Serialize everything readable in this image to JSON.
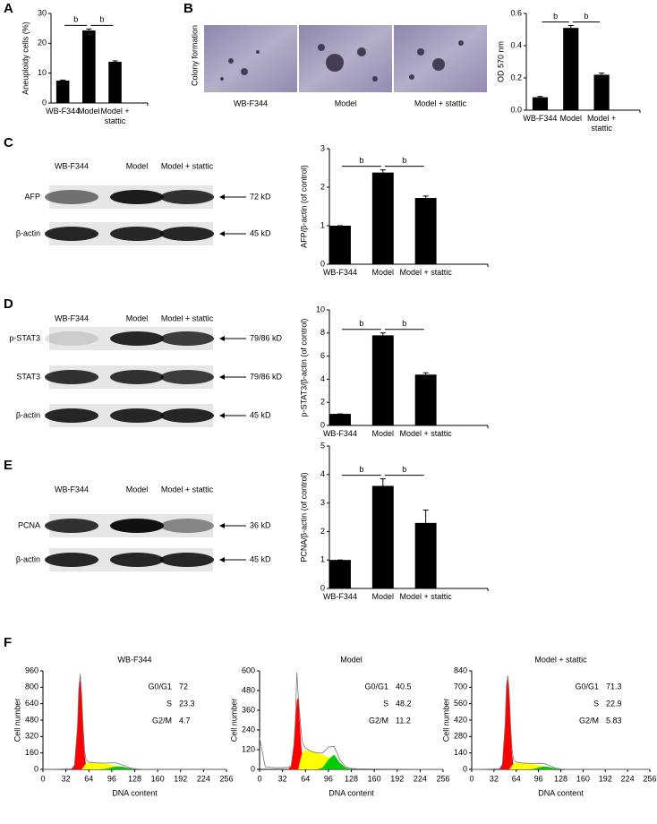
{
  "panel_labels": [
    "A",
    "B",
    "C",
    "D",
    "E",
    "F"
  ],
  "colony": {
    "ylabel": "Colony formation",
    "labels": [
      "WB-F344",
      "Model",
      "Model + stattic"
    ]
  },
  "blots": [
    {
      "lanes": [
        "WB-F344",
        "Model",
        "Model + stattic"
      ],
      "rows": [
        {
          "name": "AFP",
          "size": "72 kD"
        },
        {
          "name": "β-actin",
          "size": "45 kD"
        }
      ]
    },
    {
      "lanes": [
        "WB-F344",
        "Model",
        "Model + stattic"
      ],
      "rows": [
        {
          "name": "p-STAT3",
          "size": "79/86 kD"
        },
        {
          "name": "STAT3",
          "size": "79/86 kD"
        },
        {
          "name": "β-actin",
          "size": "45 kD"
        }
      ]
    },
    {
      "lanes": [
        "WB-F344",
        "Model",
        "Model + stattic"
      ],
      "rows": [
        {
          "name": "PCNA",
          "size": "36 kD"
        },
        {
          "name": "β-actin",
          "size": "45 kD"
        }
      ]
    }
  ],
  "chart_data": [
    {
      "type": "bar",
      "ylabel": "Aneuploidy cells (%)",
      "categories": [
        "WB-F344",
        "Model",
        "Model + stattic"
      ],
      "values": [
        7.5,
        24.3,
        13.8
      ],
      "errors": [
        0.2,
        0.5,
        0.3
      ],
      "color": "#000000",
      "ylim": [
        0,
        30
      ],
      "yticks": [
        0,
        10,
        20,
        30
      ],
      "significance_labels": [
        "b",
        "b"
      ]
    },
    {
      "type": "bar",
      "ylabel": "OD 570 nm",
      "categories": [
        "WB-F344",
        "Model",
        "Model + stattic"
      ],
      "values": [
        0.08,
        0.51,
        0.22
      ],
      "errors": [
        0.005,
        0.015,
        0.01
      ],
      "color": "#000000",
      "ylim": [
        0,
        0.6
      ],
      "yticks": [
        {
          "value": 0,
          "label": "0.0"
        },
        0.2,
        0.4,
        0.6
      ],
      "significance_labels": [
        "b",
        "b"
      ]
    },
    {
      "type": "bar",
      "ylabel": "AFP/β-actin (of control)",
      "categories": [
        "WB-F344",
        "Model",
        "Model + stattic"
      ],
      "values": [
        1,
        2.38,
        1.72
      ],
      "errors": [
        0,
        0.07,
        0.05
      ],
      "color": "#000000",
      "ylim": [
        0,
        3
      ],
      "yticks": [
        0,
        1,
        2,
        3
      ],
      "significance_labels": [
        "b",
        "b"
      ]
    },
    {
      "type": "bar",
      "ylabel": "p-STAT3/β-actin (of control)",
      "categories": [
        "WB-F344",
        "Model",
        "Model + stattic"
      ],
      "values": [
        1,
        7.8,
        4.4
      ],
      "errors": [
        0,
        0.2,
        0.15
      ],
      "color": "#000000",
      "ylim": [
        0,
        10
      ],
      "yticks": [
        0,
        2,
        4,
        6,
        8,
        10
      ],
      "significance_labels": [
        "b",
        "b"
      ]
    },
    {
      "type": "bar",
      "ylabel": "PCNA/β-actin (of control)",
      "categories": [
        "WB-F344",
        "Model",
        "Model + stattic"
      ],
      "values": [
        1,
        3.6,
        2.3
      ],
      "errors": [
        0,
        0.25,
        0.45
      ],
      "color": "#000000",
      "ylim": [
        0,
        5
      ],
      "yticks": [
        0,
        1,
        2,
        3,
        4,
        5
      ],
      "significance_labels": [
        "b",
        "b"
      ]
    },
    {
      "type": "area",
      "title": "WB-F344",
      "xlabel": "DNA content",
      "ylabel": "Cell number",
      "x": [
        0,
        8,
        24,
        40,
        44,
        48,
        50,
        52,
        54,
        56,
        58,
        60,
        64,
        72,
        80,
        88,
        96,
        104,
        112,
        120,
        128,
        136,
        160,
        256
      ],
      "series": [
        {
          "color": "#ff0000",
          "fill": true,
          "values": [
            0,
            0,
            0,
            3,
            40,
            400,
            780,
            900,
            720,
            400,
            150,
            40,
            5,
            0,
            0,
            0,
            0,
            0,
            0,
            0,
            0,
            0,
            0,
            0
          ]
        },
        {
          "color": "#ffff00",
          "fill": true,
          "values": [
            0,
            0,
            0,
            0,
            0,
            0,
            0,
            0,
            0,
            20,
            40,
            55,
            65,
            65,
            60,
            55,
            45,
            30,
            15,
            5,
            0,
            0,
            0,
            0
          ]
        },
        {
          "color": "#00cc00",
          "fill": true,
          "values": [
            0,
            0,
            0,
            0,
            0,
            0,
            0,
            0,
            0,
            0,
            0,
            0,
            0,
            0,
            0,
            5,
            20,
            30,
            25,
            12,
            3,
            0,
            0,
            0
          ]
        },
        {
          "color": "#777777",
          "fill": false,
          "values": [
            0,
            0,
            2,
            5,
            42,
            405,
            785,
            930,
            725,
            420,
            190,
            95,
            70,
            65,
            62,
            60,
            65,
            60,
            40,
            17,
            5,
            2,
            0,
            0
          ]
        }
      ],
      "xlim": [
        0,
        256
      ],
      "xticks": [
        0,
        32,
        64,
        96,
        128,
        160,
        192,
        224,
        256
      ],
      "ylim": [
        0,
        960
      ],
      "yticks": [
        0,
        160,
        320,
        480,
        640,
        800,
        960
      ],
      "stats": [
        {
          "label": "G0/G1",
          "value": 72
        },
        {
          "label": "S",
          "value": 23.3
        },
        {
          "label": "G2/M",
          "value": 4.7
        }
      ]
    },
    {
      "type": "area",
      "title": "Model",
      "xlabel": "DNA content",
      "ylabel": "Cell number",
      "x": [
        0,
        8,
        24,
        40,
        44,
        48,
        50,
        52,
        54,
        56,
        58,
        60,
        64,
        72,
        80,
        88,
        96,
        104,
        112,
        120,
        128,
        136,
        160,
        256
      ],
      "series": [
        {
          "color": "#ff0000",
          "fill": true,
          "values": [
            0,
            0,
            0,
            2,
            20,
            150,
            300,
            420,
            440,
            300,
            150,
            60,
            10,
            0,
            0,
            0,
            0,
            0,
            0,
            0,
            0,
            0,
            0,
            0
          ]
        },
        {
          "color": "#ffff00",
          "fill": true,
          "values": [
            0,
            0,
            0,
            0,
            0,
            0,
            0,
            0,
            0,
            40,
            80,
            100,
            120,
            110,
            100,
            90,
            75,
            50,
            20,
            5,
            0,
            0,
            0,
            0
          ]
        },
        {
          "color": "#00cc00",
          "fill": true,
          "values": [
            0,
            0,
            0,
            0,
            0,
            0,
            0,
            0,
            0,
            0,
            0,
            0,
            0,
            0,
            0,
            10,
            60,
            90,
            40,
            10,
            2,
            0,
            0,
            0
          ]
        },
        {
          "color": "#777777",
          "fill": false,
          "values": [
            190,
            15,
            10,
            12,
            22,
            155,
            310,
            590,
            445,
            340,
            230,
            160,
            130,
            110,
            100,
            100,
            135,
            140,
            60,
            15,
            5,
            3,
            2,
            0
          ]
        }
      ],
      "xlim": [
        0,
        256
      ],
      "xticks": [
        0,
        32,
        64,
        96,
        128,
        160,
        192,
        224,
        256
      ],
      "ylim": [
        0,
        600
      ],
      "yticks": [
        0,
        120,
        240,
        360,
        480,
        600
      ],
      "stats": [
        {
          "label": "G0/G1",
          "value": 40.5
        },
        {
          "label": "S",
          "value": 48.2
        },
        {
          "label": "G2/M",
          "value": 11.2
        }
      ]
    },
    {
      "type": "area",
      "title": "Model + stattic",
      "xlabel": "DNA content",
      "ylabel": "Cell number",
      "x": [
        0,
        8,
        24,
        40,
        44,
        48,
        50,
        52,
        54,
        56,
        58,
        60,
        64,
        72,
        80,
        88,
        96,
        104,
        112,
        120,
        128,
        136,
        160,
        256
      ],
      "series": [
        {
          "color": "#ff0000",
          "fill": true,
          "values": [
            0,
            0,
            0,
            3,
            40,
            380,
            720,
            780,
            640,
            350,
            130,
            35,
            5,
            0,
            0,
            0,
            0,
            0,
            0,
            0,
            0,
            0,
            0,
            0
          ]
        },
        {
          "color": "#ffff00",
          "fill": true,
          "values": [
            0,
            0,
            0,
            0,
            0,
            0,
            0,
            0,
            0,
            15,
            35,
            45,
            55,
            55,
            50,
            45,
            35,
            25,
            12,
            4,
            0,
            0,
            0,
            0
          ]
        },
        {
          "color": "#00cc00",
          "fill": true,
          "values": [
            0,
            0,
            0,
            0,
            0,
            0,
            0,
            0,
            0,
            0,
            0,
            0,
            0,
            0,
            0,
            3,
            15,
            25,
            20,
            8,
            2,
            0,
            0,
            0
          ]
        },
        {
          "color": "#777777",
          "fill": false,
          "values": [
            0,
            0,
            2,
            5,
            42,
            385,
            725,
            800,
            645,
            370,
            170,
            85,
            62,
            55,
            52,
            50,
            52,
            50,
            32,
            12,
            3,
            1,
            0,
            0
          ]
        }
      ],
      "xlim": [
        0,
        256
      ],
      "xticks": [
        0,
        32,
        64,
        96,
        128,
        160,
        192,
        224,
        256
      ],
      "ylim": [
        0,
        840
      ],
      "yticks": [
        0,
        140,
        280,
        420,
        560,
        700,
        840
      ],
      "stats": [
        {
          "label": "G0/G1",
          "value": 71.3
        },
        {
          "label": "S",
          "value": 22.9
        },
        {
          "label": "G2/M",
          "value": 5.83
        }
      ]
    }
  ]
}
